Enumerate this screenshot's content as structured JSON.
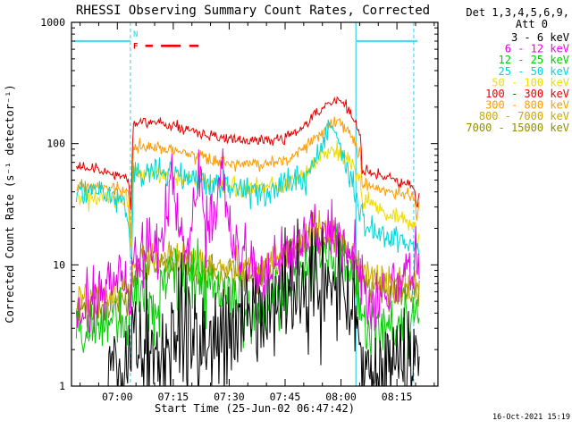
{
  "footer": {
    "timestamp": "16-Oct-2021 15:19"
  },
  "legend": {
    "header1": "Det 1,3,4,5,6,9,",
    "header2": "Att 0"
  },
  "chart_data": {
    "type": "line",
    "title": "RHESSI Observing Summary Count Rates, Corrected",
    "xlabel": "Start Time (25-Jun-02 06:47:42)",
    "ylabel": "Corrected Count Rate (s⁻¹ detector⁻¹)",
    "yscale": "log",
    "ylim": [
      1,
      1000
    ],
    "xlim": [
      47.7,
      146
    ],
    "x_units": "minutes after 06:00 UT on 25-Jun-02",
    "x_ticks": [
      {
        "t": 60,
        "label": "07:00"
      },
      {
        "t": 75,
        "label": "07:15"
      },
      {
        "t": 90,
        "label": "07:30"
      },
      {
        "t": 105,
        "label": "07:45"
      },
      {
        "t": 120,
        "label": "08:00"
      },
      {
        "t": 135,
        "label": "08:15"
      }
    ],
    "y_ticks": [
      {
        "v": 1,
        "label": "1"
      },
      {
        "v": 10,
        "label": "10"
      },
      {
        "v": 100,
        "label": "100"
      },
      {
        "v": 1000,
        "label": "1000"
      }
    ],
    "series": [
      {
        "name": "3 - 6 keV",
        "color": "#000000",
        "noise": 0.55,
        "points": [
          [
            57,
            1.2
          ],
          [
            60,
            1.5
          ],
          [
            63,
            1.7
          ],
          [
            64.2,
            2
          ],
          [
            67,
            2.1
          ],
          [
            70,
            1.9
          ],
          [
            74,
            2.3
          ],
          [
            78,
            2.1
          ],
          [
            82,
            2.4
          ],
          [
            86,
            2.7
          ],
          [
            89,
            2.9
          ],
          [
            92,
            3.3
          ],
          [
            95,
            3.8
          ],
          [
            98,
            3.4
          ],
          [
            101,
            4
          ],
          [
            104,
            5
          ],
          [
            108,
            6.3
          ],
          [
            111,
            7.3
          ],
          [
            114,
            7.8
          ],
          [
            117,
            7.2
          ],
          [
            120,
            6
          ],
          [
            122,
            4.5
          ],
          [
            124,
            3
          ],
          [
            126,
            1.6
          ],
          [
            129,
            1.3
          ],
          [
            132,
            1.7
          ],
          [
            135,
            1.4
          ],
          [
            138,
            1.8
          ],
          [
            141,
            1.9
          ]
        ]
      },
      {
        "name": "6 - 12 keV",
        "color": "#EA00EA",
        "noise": 0.3,
        "points": [
          [
            49,
            3.5
          ],
          [
            53,
            5
          ],
          [
            57,
            7
          ],
          [
            61,
            9
          ],
          [
            63.5,
            4
          ],
          [
            64.2,
            11
          ],
          [
            66,
            13
          ],
          [
            68,
            14
          ],
          [
            71,
            15
          ],
          [
            73,
            20
          ],
          [
            74,
            45
          ],
          [
            74.6,
            75
          ],
          [
            75.2,
            50
          ],
          [
            76,
            25
          ],
          [
            77.5,
            17
          ],
          [
            79,
            15
          ],
          [
            81,
            30
          ],
          [
            81.9,
            55
          ],
          [
            82.6,
            45
          ],
          [
            83.4,
            28
          ],
          [
            84.5,
            20
          ],
          [
            86.5,
            28
          ],
          [
            87.7,
            60
          ],
          [
            88.5,
            45
          ],
          [
            89.5,
            25
          ],
          [
            91,
            15
          ],
          [
            93,
            11
          ],
          [
            96,
            9
          ],
          [
            100,
            8.5
          ],
          [
            103,
            10
          ],
          [
            106,
            13
          ],
          [
            110,
            17
          ],
          [
            114,
            19
          ],
          [
            118,
            19
          ],
          [
            121,
            14
          ],
          [
            124,
            9
          ],
          [
            125.8,
            5
          ],
          [
            128,
            4.5
          ],
          [
            131,
            5.5
          ],
          [
            134,
            6.5
          ],
          [
            137,
            7.5
          ],
          [
            140,
            9
          ],
          [
            141,
            10
          ]
        ]
      },
      {
        "name": "12 - 25 keV",
        "color": "#00CB00",
        "noise": 0.3,
        "points": [
          [
            49,
            2.6
          ],
          [
            54,
            3
          ],
          [
            59,
            3.4
          ],
          [
            63,
            3.4
          ],
          [
            64.2,
            5
          ],
          [
            66,
            5.5
          ],
          [
            70,
            5.5
          ],
          [
            73,
            6.5
          ],
          [
            74.5,
            11
          ],
          [
            76,
            7
          ],
          [
            78,
            6
          ],
          [
            81.5,
            8.5
          ],
          [
            83,
            7
          ],
          [
            87,
            8
          ],
          [
            89,
            6
          ],
          [
            92,
            5
          ],
          [
            95,
            4.6
          ],
          [
            99,
            4.6
          ],
          [
            103,
            5.5
          ],
          [
            107,
            8
          ],
          [
            111,
            10.5
          ],
          [
            114,
            11.5
          ],
          [
            117,
            11.5
          ],
          [
            120,
            10.5
          ],
          [
            123,
            7
          ],
          [
            125.5,
            4
          ],
          [
            128,
            2.8
          ],
          [
            132,
            2.8
          ],
          [
            136,
            3.2
          ],
          [
            141,
            3.8
          ]
        ]
      },
      {
        "name": "25 - 50 keV",
        "color": "#00D7D7",
        "noise": 0.13,
        "points": [
          [
            49,
            41
          ],
          [
            55,
            40
          ],
          [
            60,
            38
          ],
          [
            62,
            37
          ],
          [
            63.2,
            18
          ],
          [
            63.8,
            9
          ],
          [
            64.3,
            58
          ],
          [
            66,
            62
          ],
          [
            70,
            60
          ],
          [
            75,
            55
          ],
          [
            80,
            50
          ],
          [
            85,
            46
          ],
          [
            90,
            43
          ],
          [
            95,
            42
          ],
          [
            100,
            42
          ],
          [
            104,
            44
          ],
          [
            108,
            50
          ],
          [
            111,
            58
          ],
          [
            113,
            72
          ],
          [
            115,
            98
          ],
          [
            116.5,
            138
          ],
          [
            117.3,
            148
          ],
          [
            118.2,
            126
          ],
          [
            119.5,
            96
          ],
          [
            121,
            66
          ],
          [
            123,
            44
          ],
          [
            125,
            28
          ],
          [
            126.5,
            21
          ],
          [
            129,
            18
          ],
          [
            133,
            16
          ],
          [
            137,
            15
          ],
          [
            141,
            14
          ]
        ]
      },
      {
        "name": "50 - 100 keV",
        "color": "#EDDC00",
        "noise": 0.09,
        "points": [
          [
            49,
            37
          ],
          [
            55,
            36
          ],
          [
            60,
            35
          ],
          [
            63,
            33
          ],
          [
            63.6,
            13
          ],
          [
            64.2,
            56
          ],
          [
            66,
            58
          ],
          [
            70,
            57
          ],
          [
            75,
            54
          ],
          [
            80,
            50
          ],
          [
            85,
            47
          ],
          [
            90,
            45
          ],
          [
            95,
            44
          ],
          [
            100,
            44
          ],
          [
            105,
            46
          ],
          [
            109,
            53
          ],
          [
            113,
            66
          ],
          [
            116,
            80
          ],
          [
            118,
            87
          ],
          [
            120,
            84
          ],
          [
            122,
            72
          ],
          [
            124,
            58
          ],
          [
            125.3,
            46
          ],
          [
            125.8,
            30
          ],
          [
            126.5,
            34
          ],
          [
            128,
            31
          ],
          [
            132,
            27
          ],
          [
            136,
            24
          ],
          [
            139.5,
            21
          ],
          [
            140.5,
            13
          ],
          [
            141,
            18
          ]
        ]
      },
      {
        "name": "100 - 300 keV",
        "color": "#E60000",
        "noise": 0.055,
        "points": [
          [
            49,
            64
          ],
          [
            55,
            60
          ],
          [
            60,
            57
          ],
          [
            63,
            54
          ],
          [
            63.6,
            24
          ],
          [
            64.2,
            142
          ],
          [
            66,
            150
          ],
          [
            70,
            147
          ],
          [
            75,
            138
          ],
          [
            80,
            126
          ],
          [
            85,
            116
          ],
          [
            90,
            109
          ],
          [
            95,
            106
          ],
          [
            100,
            106
          ],
          [
            105,
            112
          ],
          [
            109,
            130
          ],
          [
            113,
            170
          ],
          [
            116,
            208
          ],
          [
            118,
            226
          ],
          [
            120,
            222
          ],
          [
            122,
            192
          ],
          [
            124,
            148
          ],
          [
            125.3,
            110
          ],
          [
            125.8,
            52
          ],
          [
            126.5,
            62
          ],
          [
            128,
            58
          ],
          [
            132,
            53
          ],
          [
            136,
            48
          ],
          [
            139.5,
            44
          ],
          [
            140.5,
            30
          ],
          [
            141,
            40
          ]
        ]
      },
      {
        "name": "300 - 800 keV",
        "color": "#FF9C00",
        "noise": 0.065,
        "points": [
          [
            49,
            46
          ],
          [
            55,
            44
          ],
          [
            60,
            42
          ],
          [
            63,
            40
          ],
          [
            63.6,
            16
          ],
          [
            64.2,
            92
          ],
          [
            66,
            96
          ],
          [
            70,
            94
          ],
          [
            75,
            88
          ],
          [
            80,
            81
          ],
          [
            85,
            75
          ],
          [
            90,
            70
          ],
          [
            95,
            68
          ],
          [
            100,
            68
          ],
          [
            105,
            72
          ],
          [
            109,
            86
          ],
          [
            113,
            112
          ],
          [
            116,
            138
          ],
          [
            118,
            150
          ],
          [
            120,
            146
          ],
          [
            122,
            126
          ],
          [
            124,
            99
          ],
          [
            125.3,
            76
          ],
          [
            125.8,
            40
          ],
          [
            126.5,
            48
          ],
          [
            128,
            45
          ],
          [
            132,
            41
          ],
          [
            136,
            38
          ],
          [
            139.5,
            35
          ],
          [
            140.5,
            24
          ],
          [
            141,
            32
          ]
        ]
      },
      {
        "name": "800 - 7000 keV",
        "color": "#C9A800",
        "noise": 0.16,
        "points": [
          [
            49,
            5
          ],
          [
            55,
            5.6
          ],
          [
            60,
            6
          ],
          [
            63,
            6
          ],
          [
            64.2,
            9
          ],
          [
            66,
            11
          ],
          [
            68,
            12
          ],
          [
            72,
            12.2
          ],
          [
            76,
            12
          ],
          [
            80,
            11.2
          ],
          [
            84,
            10.6
          ],
          [
            88,
            10
          ],
          [
            92,
            9.6
          ],
          [
            96,
            9.6
          ],
          [
            100,
            10.2
          ],
          [
            104,
            12
          ],
          [
            108,
            15
          ],
          [
            111,
            17.5
          ],
          [
            114,
            19.5
          ],
          [
            117,
            19
          ],
          [
            120,
            17
          ],
          [
            123,
            13
          ],
          [
            125.5,
            9.5
          ],
          [
            128,
            8
          ],
          [
            132,
            7.4
          ],
          [
            136,
            7
          ],
          [
            141,
            7
          ]
        ]
      },
      {
        "name": "7000 - 15000 keV",
        "color": "#8E8E00",
        "noise": 0.16,
        "points": [
          [
            49,
            4
          ],
          [
            55,
            4.5
          ],
          [
            60,
            4.9
          ],
          [
            63,
            4.9
          ],
          [
            64.2,
            7
          ],
          [
            66,
            8.5
          ],
          [
            68,
            9.5
          ],
          [
            72,
            10
          ],
          [
            76,
            9.8
          ],
          [
            80,
            9.2
          ],
          [
            84,
            8.8
          ],
          [
            88,
            8.4
          ],
          [
            92,
            8
          ],
          [
            96,
            8
          ],
          [
            100,
            8.5
          ],
          [
            104,
            10
          ],
          [
            108,
            12.8
          ],
          [
            111,
            15
          ],
          [
            114,
            16.8
          ],
          [
            117,
            16.2
          ],
          [
            120,
            14.2
          ],
          [
            123,
            10.5
          ],
          [
            125.5,
            7.6
          ],
          [
            128,
            6.6
          ],
          [
            132,
            6.2
          ],
          [
            136,
            6
          ],
          [
            141,
            6
          ]
        ]
      }
    ],
    "overlays": {
      "night_color": "#4FD9F2",
      "night_level": 700,
      "night_segments": [
        [
          48.4,
          63.5
        ],
        [
          124,
          140.5
        ]
      ],
      "vlines_dashed": [
        63.5,
        139.5
      ],
      "vlines_solid": [
        124
      ],
      "night_label": {
        "text": "N",
        "t": 64.9,
        "color": "#4FD9F2"
      },
      "flag_label": {
        "text": "F",
        "t": 64.9,
        "color": "#EE0000"
      },
      "flag_color": "#EE0000",
      "flag_level": 640,
      "flag_segments": [
        [
          67.5,
          69.5
        ],
        [
          71.7,
          77
        ],
        [
          79.3,
          81.8
        ]
      ]
    }
  }
}
